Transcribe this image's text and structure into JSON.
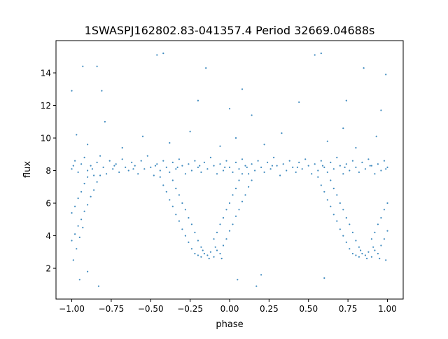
{
  "chart_data": {
    "type": "scatter",
    "title": "1SWASPJ162802.83-041357.4 Period 32669.04688s",
    "xlabel": "phase",
    "ylabel": "flux",
    "xlim": [
      -1.1,
      1.1
    ],
    "ylim": [
      0.11,
      15.98
    ],
    "xticks": [
      -1.0,
      -0.75,
      -0.5,
      -0.25,
      0.0,
      0.25,
      0.5,
      0.75,
      1.0
    ],
    "xtick_labels": [
      "−1.00",
      "−0.75",
      "−0.50",
      "−0.25",
      "0.00",
      "0.25",
      "0.50",
      "0.75",
      "1.00"
    ],
    "yticks": [
      2,
      4,
      6,
      8,
      10,
      12,
      14
    ],
    "ytick_labels": [
      "2",
      "4",
      "6",
      "8",
      "10",
      "12",
      "14"
    ],
    "grid": false,
    "marker_color": "#1f77b4",
    "series": [
      {
        "name": "flux",
        "points": [
          [
            -1.0,
            8.1
          ],
          [
            -0.98,
            8.6
          ],
          [
            -0.96,
            7.9
          ],
          [
            -0.94,
            8.4
          ],
          [
            -0.92,
            8.8
          ],
          [
            -0.9,
            8.0
          ],
          [
            -0.88,
            8.3
          ],
          [
            -0.86,
            7.7
          ],
          [
            -0.84,
            8.5
          ],
          [
            -0.82,
            8.9
          ],
          [
            -0.8,
            8.2
          ],
          [
            -0.78,
            7.8
          ],
          [
            -0.76,
            8.6
          ],
          [
            -0.74,
            8.1
          ],
          [
            -0.72,
            8.4
          ],
          [
            -0.7,
            7.9
          ],
          [
            -0.68,
            8.7
          ],
          [
            -0.66,
            8.2
          ],
          [
            -0.64,
            8.0
          ],
          [
            -0.62,
            8.5
          ],
          [
            -0.6,
            8.3
          ],
          [
            -0.58,
            7.8
          ],
          [
            -0.56,
            8.6
          ],
          [
            -0.54,
            8.1
          ],
          [
            -0.52,
            8.9
          ],
          [
            -0.5,
            8.2
          ],
          [
            -0.48,
            7.7
          ],
          [
            -0.46,
            8.4
          ],
          [
            -0.44,
            8.0
          ],
          [
            -0.42,
            8.6
          ],
          [
            -0.4,
            8.2
          ],
          [
            -0.38,
            7.9
          ],
          [
            -0.36,
            8.5
          ],
          [
            -0.34,
            8.1
          ],
          [
            -0.32,
            8.7
          ],
          [
            -0.3,
            8.3
          ],
          [
            -0.28,
            7.8
          ],
          [
            -0.26,
            8.4
          ],
          [
            -0.24,
            8.0
          ],
          [
            -0.22,
            8.6
          ],
          [
            -0.2,
            8.2
          ],
          [
            -0.18,
            7.9
          ],
          [
            -0.16,
            8.5
          ],
          [
            -0.14,
            8.1
          ],
          [
            -0.12,
            8.8
          ],
          [
            -0.1,
            8.3
          ],
          [
            -0.08,
            7.8
          ],
          [
            -0.06,
            8.4
          ],
          [
            -0.04,
            8.0
          ],
          [
            -0.02,
            8.6
          ],
          [
            0.0,
            8.2
          ],
          [
            0.02,
            7.9
          ],
          [
            0.04,
            8.5
          ],
          [
            0.06,
            8.1
          ],
          [
            0.08,
            8.7
          ],
          [
            0.1,
            8.3
          ],
          [
            0.12,
            7.8
          ],
          [
            0.14,
            8.4
          ],
          [
            0.16,
            8.0
          ],
          [
            0.18,
            8.6
          ],
          [
            0.2,
            8.2
          ],
          [
            0.22,
            7.9
          ],
          [
            0.24,
            8.5
          ],
          [
            0.26,
            8.1
          ],
          [
            0.28,
            8.8
          ],
          [
            0.3,
            8.3
          ],
          [
            0.32,
            7.7
          ],
          [
            0.34,
            8.4
          ],
          [
            0.36,
            8.0
          ],
          [
            0.38,
            8.6
          ],
          [
            0.4,
            8.2
          ],
          [
            0.42,
            7.9
          ],
          [
            0.44,
            8.5
          ],
          [
            0.46,
            8.1
          ],
          [
            0.48,
            8.7
          ],
          [
            0.5,
            8.3
          ],
          [
            0.52,
            7.8
          ],
          [
            0.54,
            8.4
          ],
          [
            0.56,
            8.0
          ],
          [
            0.58,
            8.6
          ],
          [
            0.6,
            8.2
          ],
          [
            0.62,
            7.9
          ],
          [
            0.64,
            8.5
          ],
          [
            0.66,
            8.1
          ],
          [
            0.68,
            8.8
          ],
          [
            0.7,
            8.3
          ],
          [
            0.72,
            7.8
          ],
          [
            0.74,
            8.4
          ],
          [
            0.76,
            8.0
          ],
          [
            0.78,
            8.6
          ],
          [
            0.8,
            8.2
          ],
          [
            0.82,
            7.9
          ],
          [
            0.84,
            8.5
          ],
          [
            0.86,
            8.1
          ],
          [
            0.88,
            8.7
          ],
          [
            0.9,
            8.3
          ],
          [
            0.92,
            7.8
          ],
          [
            0.94,
            8.4
          ],
          [
            0.96,
            8.0
          ],
          [
            0.98,
            8.6
          ],
          [
            1.0,
            8.2
          ],
          [
            -0.99,
            8.3
          ],
          [
            -0.87,
            8.1
          ],
          [
            -0.73,
            8.3
          ],
          [
            -0.61,
            8.1
          ],
          [
            -0.47,
            8.3
          ],
          [
            -0.33,
            8.2
          ],
          [
            -0.19,
            8.3
          ],
          [
            -0.03,
            8.2
          ],
          [
            0.11,
            8.2
          ],
          [
            0.27,
            8.3
          ],
          [
            0.43,
            8.2
          ],
          [
            0.59,
            8.3
          ],
          [
            0.73,
            8.2
          ],
          [
            0.89,
            8.3
          ],
          [
            0.99,
            8.1
          ],
          [
            -1.0,
            3.7
          ],
          [
            -0.98,
            4.1
          ],
          [
            -0.96,
            4.6
          ],
          [
            -0.94,
            5.0
          ],
          [
            -0.92,
            5.5
          ],
          [
            -0.9,
            5.9
          ],
          [
            -0.88,
            6.4
          ],
          [
            -0.86,
            6.8
          ],
          [
            -0.84,
            7.3
          ],
          [
            -0.82,
            7.7
          ],
          [
            -1.0,
            5.4
          ],
          [
            -0.98,
            5.8
          ],
          [
            -0.96,
            6.3
          ],
          [
            -0.94,
            6.7
          ],
          [
            -0.92,
            7.2
          ],
          [
            -0.9,
            7.6
          ],
          [
            -0.99,
            2.5
          ],
          [
            -0.97,
            3.2
          ],
          [
            -0.95,
            3.9
          ],
          [
            -0.93,
            4.5
          ],
          [
            -0.44,
            7.6
          ],
          [
            -0.42,
            7.1
          ],
          [
            -0.4,
            6.7
          ],
          [
            -0.38,
            6.2
          ],
          [
            -0.36,
            5.8
          ],
          [
            -0.34,
            5.3
          ],
          [
            -0.32,
            4.9
          ],
          [
            -0.3,
            4.4
          ],
          [
            -0.28,
            4.0
          ],
          [
            -0.26,
            3.6
          ],
          [
            -0.24,
            3.2
          ],
          [
            -0.22,
            2.9
          ],
          [
            -0.36,
            7.4
          ],
          [
            -0.34,
            6.9
          ],
          [
            -0.32,
            6.5
          ],
          [
            -0.3,
            6.0
          ],
          [
            -0.28,
            5.6
          ],
          [
            -0.26,
            5.1
          ],
          [
            -0.24,
            4.7
          ],
          [
            -0.22,
            4.2
          ],
          [
            -0.2,
            3.7
          ],
          [
            -0.18,
            3.3
          ],
          [
            -0.2,
            2.8
          ],
          [
            -0.18,
            2.7
          ],
          [
            -0.16,
            2.9
          ],
          [
            -0.14,
            2.8
          ],
          [
            -0.12,
            3.0
          ],
          [
            -0.1,
            2.7
          ],
          [
            -0.08,
            3.1
          ],
          [
            -0.06,
            2.9
          ],
          [
            -0.17,
            3.1
          ],
          [
            -0.13,
            2.6
          ],
          [
            -0.09,
            3.3
          ],
          [
            -0.05,
            2.6
          ],
          [
            -0.04,
            3.4
          ],
          [
            -0.02,
            3.8
          ],
          [
            0.0,
            4.3
          ],
          [
            0.02,
            4.7
          ],
          [
            0.04,
            5.2
          ],
          [
            0.06,
            5.6
          ],
          [
            0.08,
            6.1
          ],
          [
            0.1,
            6.5
          ],
          [
            0.12,
            7.0
          ],
          [
            0.14,
            7.4
          ],
          [
            -0.1,
            3.8
          ],
          [
            -0.08,
            4.2
          ],
          [
            -0.06,
            4.7
          ],
          [
            -0.04,
            5.1
          ],
          [
            -0.02,
            5.6
          ],
          [
            0.0,
            6.0
          ],
          [
            0.02,
            6.5
          ],
          [
            0.04,
            6.9
          ],
          [
            0.06,
            7.4
          ],
          [
            0.08,
            7.8
          ],
          [
            0.56,
            7.6
          ],
          [
            0.58,
            7.1
          ],
          [
            0.6,
            6.7
          ],
          [
            0.62,
            6.2
          ],
          [
            0.64,
            5.8
          ],
          [
            0.66,
            5.3
          ],
          [
            0.68,
            4.9
          ],
          [
            0.7,
            4.4
          ],
          [
            0.72,
            4.0
          ],
          [
            0.74,
            3.6
          ],
          [
            0.76,
            3.2
          ],
          [
            0.78,
            2.9
          ],
          [
            0.64,
            7.4
          ],
          [
            0.66,
            6.9
          ],
          [
            0.68,
            6.5
          ],
          [
            0.7,
            6.0
          ],
          [
            0.72,
            5.6
          ],
          [
            0.74,
            5.1
          ],
          [
            0.76,
            4.7
          ],
          [
            0.78,
            4.2
          ],
          [
            0.8,
            3.7
          ],
          [
            0.82,
            3.3
          ],
          [
            0.8,
            2.8
          ],
          [
            0.82,
            2.7
          ],
          [
            0.84,
            2.9
          ],
          [
            0.86,
            2.8
          ],
          [
            0.88,
            3.0
          ],
          [
            0.9,
            2.7
          ],
          [
            0.92,
            3.1
          ],
          [
            0.94,
            2.9
          ],
          [
            0.83,
            3.1
          ],
          [
            0.87,
            2.6
          ],
          [
            0.91,
            3.3
          ],
          [
            0.95,
            2.6
          ],
          [
            0.96,
            3.4
          ],
          [
            0.98,
            3.8
          ],
          [
            1.0,
            4.3
          ],
          [
            0.9,
            3.8
          ],
          [
            0.92,
            4.2
          ],
          [
            0.94,
            4.7
          ],
          [
            0.96,
            5.1
          ],
          [
            0.98,
            5.6
          ],
          [
            1.0,
            6.0
          ],
          [
            0.99,
            2.5
          ],
          [
            -0.97,
            10.2
          ],
          [
            -0.9,
            9.6
          ],
          [
            -0.79,
            11.0
          ],
          [
            -0.68,
            9.4
          ],
          [
            -0.55,
            10.1
          ],
          [
            -0.46,
            15.1
          ],
          [
            -0.42,
            15.2
          ],
          [
            -0.38,
            9.7
          ],
          [
            -0.25,
            10.4
          ],
          [
            -0.15,
            14.3
          ],
          [
            -0.06,
            9.5
          ],
          [
            0.04,
            10.0
          ],
          [
            0.14,
            11.4
          ],
          [
            0.22,
            9.6
          ],
          [
            0.33,
            10.3
          ],
          [
            0.44,
            12.2
          ],
          [
            0.54,
            15.1
          ],
          [
            0.58,
            15.2
          ],
          [
            0.62,
            9.8
          ],
          [
            0.72,
            10.6
          ],
          [
            0.8,
            9.4
          ],
          [
            0.85,
            14.3
          ],
          [
            0.93,
            10.1
          ],
          [
            0.99,
            13.9
          ],
          [
            -1.0,
            12.9
          ],
          [
            -0.93,
            14.4
          ],
          [
            -0.84,
            14.4
          ],
          [
            -0.81,
            12.9
          ],
          [
            -0.2,
            12.3
          ],
          [
            0.0,
            11.8
          ],
          [
            0.08,
            13.0
          ],
          [
            0.74,
            12.3
          ],
          [
            0.96,
            11.7
          ],
          [
            -0.95,
            1.3
          ],
          [
            -0.83,
            0.9
          ],
          [
            -0.9,
            1.8
          ],
          [
            0.05,
            1.3
          ],
          [
            0.17,
            0.9
          ],
          [
            0.2,
            1.6
          ],
          [
            0.6,
            1.4
          ]
        ]
      }
    ]
  }
}
